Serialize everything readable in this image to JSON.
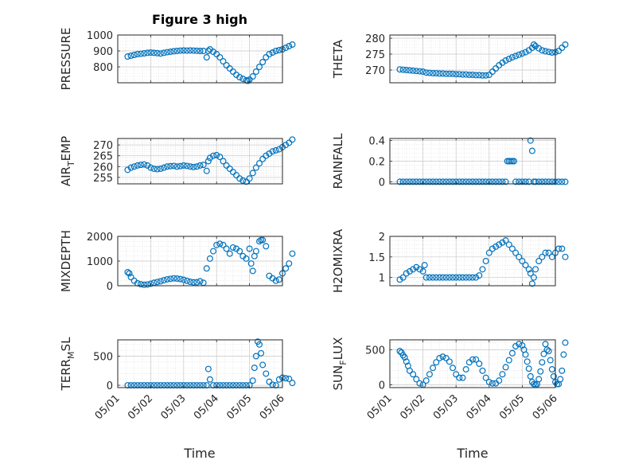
{
  "figure": {
    "title": "Figure 3 high",
    "xlabel": "Time",
    "date_ticks": [
      "05/01",
      "05/02",
      "05/03",
      "05/04",
      "05/05",
      "05/06"
    ]
  },
  "colors": {
    "marker": "#0072BD",
    "axis": "#262626",
    "grid": "#d9d9d9"
  },
  "chart_data": [
    {
      "type": "scatter",
      "ylabel": "PRESSURE",
      "xlim": [
        "05/01",
        "05/06"
      ],
      "ylim": [
        700,
        1000
      ],
      "yticks": [
        {
          "v": 800,
          "label": "800"
        },
        {
          "v": 900,
          "label": "900"
        },
        {
          "v": 1000,
          "label": "1000"
        }
      ],
      "x": [
        0.3,
        0.4,
        0.5,
        0.6,
        0.7,
        0.8,
        0.9,
        1.0,
        1.1,
        1.2,
        1.3,
        1.4,
        1.5,
        1.6,
        1.7,
        1.8,
        1.9,
        2.0,
        2.1,
        2.2,
        2.3,
        2.4,
        2.5,
        2.6,
        2.7,
        2.75,
        2.8,
        2.9,
        3.0,
        3.1,
        3.2,
        3.3,
        3.4,
        3.5,
        3.6,
        3.7,
        3.8,
        3.9,
        3.95,
        4.0,
        4.1,
        4.2,
        4.3,
        4.4,
        4.5,
        4.6,
        4.7,
        4.8,
        4.9,
        5.0,
        5.1,
        5.2,
        5.3
      ],
      "y": [
        865,
        870,
        875,
        880,
        882,
        885,
        888,
        890,
        888,
        886,
        884,
        888,
        892,
        895,
        898,
        900,
        902,
        903,
        902,
        903,
        902,
        901,
        900,
        900,
        860,
        900,
        910,
        895,
        880,
        860,
        835,
        810,
        790,
        770,
        750,
        735,
        725,
        715,
        712,
        720,
        740,
        770,
        800,
        830,
        860,
        880,
        890,
        900,
        905,
        910,
        920,
        930,
        940
      ]
    },
    {
      "type": "scatter",
      "ylabel": "THETA",
      "xlim": [
        "05/01",
        "05/06"
      ],
      "ylim": [
        266,
        281
      ],
      "yticks": [
        {
          "v": 270,
          "label": "270"
        },
        {
          "v": 275,
          "label": "275"
        },
        {
          "v": 280,
          "label": "280"
        }
      ],
      "x": [
        0.3,
        0.4,
        0.5,
        0.6,
        0.7,
        0.8,
        0.9,
        1.0,
        1.1,
        1.2,
        1.3,
        1.4,
        1.5,
        1.6,
        1.7,
        1.8,
        1.9,
        2.0,
        2.1,
        2.2,
        2.3,
        2.4,
        2.5,
        2.6,
        2.7,
        2.8,
        2.9,
        3.0,
        3.1,
        3.2,
        3.3,
        3.4,
        3.5,
        3.6,
        3.7,
        3.8,
        3.9,
        4.0,
        4.1,
        4.2,
        4.3,
        4.35,
        4.4,
        4.5,
        4.6,
        4.7,
        4.8,
        4.9,
        5.0,
        5.1,
        5.2,
        5.3
      ],
      "y": [
        270.2,
        270.1,
        270.0,
        269.9,
        269.8,
        269.7,
        269.6,
        269.5,
        269.2,
        269.1,
        269.0,
        269.0,
        268.9,
        268.9,
        268.8,
        268.8,
        268.8,
        268.7,
        268.7,
        268.6,
        268.6,
        268.5,
        268.5,
        268.4,
        268.4,
        268.3,
        268.3,
        268.5,
        269.5,
        270.5,
        271.5,
        272.3,
        273.0,
        273.5,
        274.0,
        274.4,
        274.8,
        275.2,
        275.6,
        276.2,
        277.0,
        278.0,
        277.5,
        276.8,
        276.2,
        275.9,
        275.7,
        275.5,
        275.6,
        276.0,
        277.0,
        278.0
      ]
    },
    {
      "type": "scatter",
      "ylabel": "AIR_TEMP",
      "xlim": [
        "05/01",
        "05/06"
      ],
      "ylim": [
        252,
        273
      ],
      "yticks": [
        {
          "v": 255,
          "label": "255"
        },
        {
          "v": 260,
          "label": "260"
        },
        {
          "v": 265,
          "label": "265"
        },
        {
          "v": 270,
          "label": "270"
        }
      ],
      "x": [
        0.3,
        0.4,
        0.5,
        0.6,
        0.7,
        0.8,
        0.9,
        1.0,
        1.1,
        1.2,
        1.3,
        1.4,
        1.5,
        1.6,
        1.7,
        1.8,
        1.9,
        2.0,
        2.1,
        2.2,
        2.3,
        2.4,
        2.5,
        2.6,
        2.7,
        2.75,
        2.8,
        2.9,
        3.0,
        3.1,
        3.2,
        3.3,
        3.4,
        3.5,
        3.6,
        3.7,
        3.8,
        3.9,
        4.0,
        4.1,
        4.2,
        4.3,
        4.4,
        4.5,
        4.6,
        4.7,
        4.8,
        4.9,
        5.0,
        5.1,
        5.2,
        5.3
      ],
      "y": [
        258.5,
        259.5,
        260.0,
        260.5,
        260.8,
        261.0,
        260.5,
        259.5,
        259.0,
        258.8,
        259.0,
        259.5,
        260.0,
        260.2,
        260.3,
        260.0,
        260.2,
        260.5,
        260.3,
        260.0,
        259.8,
        260.0,
        260.5,
        260.8,
        258.0,
        262.5,
        264.0,
        265.0,
        265.3,
        264.5,
        262.5,
        260.5,
        259.0,
        257.5,
        256.0,
        254.5,
        253.5,
        253.0,
        254.5,
        257.0,
        259.5,
        261.5,
        263.5,
        265.0,
        266.0,
        267.0,
        267.5,
        268.0,
        269.0,
        270.0,
        271.0,
        272.5
      ]
    },
    {
      "type": "scatter",
      "ylabel": "RAINFALL",
      "xlim": [
        "05/01",
        "05/06"
      ],
      "ylim": [
        -0.02,
        0.42
      ],
      "yticks": [
        {
          "v": 0,
          "label": "0"
        },
        {
          "v": 0.2,
          "label": "0.2"
        },
        {
          "v": 0.4,
          "label": "0.4"
        }
      ],
      "x": [
        0.3,
        0.4,
        0.5,
        0.6,
        0.7,
        0.8,
        0.9,
        1.0,
        1.1,
        1.2,
        1.3,
        1.4,
        1.5,
        1.6,
        1.7,
        1.8,
        1.9,
        2.0,
        2.1,
        2.2,
        2.3,
        2.4,
        2.5,
        2.6,
        2.7,
        2.8,
        2.9,
        3.0,
        3.1,
        3.2,
        3.3,
        3.4,
        3.5,
        3.55,
        3.6,
        3.65,
        3.7,
        3.75,
        3.8,
        3.9,
        4.0,
        4.1,
        4.2,
        4.25,
        4.3,
        4.35,
        4.4,
        4.5,
        4.6,
        4.7,
        4.8,
        4.9,
        5.0,
        5.1,
        5.2,
        5.3
      ],
      "y": [
        0,
        0,
        0,
        0,
        0,
        0,
        0,
        0,
        0,
        0,
        0,
        0,
        0,
        0,
        0,
        0,
        0,
        0,
        0,
        0,
        0,
        0,
        0,
        0,
        0,
        0,
        0,
        0,
        0,
        0,
        0,
        0,
        0,
        0.2,
        0.2,
        0.2,
        0.2,
        0.2,
        0,
        0,
        0,
        0,
        0,
        0.4,
        0.3,
        0,
        0,
        0,
        0,
        0,
        0,
        0,
        0,
        0,
        0,
        0
      ]
    },
    {
      "type": "scatter",
      "ylabel": "MIXDEPTH",
      "xlim": [
        "05/01",
        "05/06"
      ],
      "ylim": [
        0,
        2000
      ],
      "yticks": [
        {
          "v": 0,
          "label": "0"
        },
        {
          "v": 1000,
          "label": "1000"
        },
        {
          "v": 2000,
          "label": "2000"
        }
      ],
      "x": [
        0.3,
        0.35,
        0.4,
        0.5,
        0.6,
        0.7,
        0.8,
        0.9,
        1.0,
        1.1,
        1.2,
        1.3,
        1.4,
        1.5,
        1.6,
        1.7,
        1.8,
        1.9,
        2.0,
        2.1,
        2.2,
        2.3,
        2.4,
        2.5,
        2.6,
        2.7,
        2.8,
        2.9,
        3.0,
        3.1,
        3.2,
        3.3,
        3.4,
        3.5,
        3.6,
        3.7,
        3.8,
        3.9,
        4.0,
        4.05,
        4.1,
        4.15,
        4.2,
        4.3,
        4.35,
        4.4,
        4.5,
        4.6,
        4.7,
        4.8,
        4.9,
        5.0,
        5.1,
        5.2,
        5.3
      ],
      "y": [
        550,
        500,
        350,
        200,
        100,
        60,
        40,
        50,
        80,
        120,
        150,
        180,
        220,
        260,
        280,
        300,
        290,
        270,
        240,
        200,
        160,
        140,
        140,
        180,
        120,
        700,
        1100,
        1400,
        1650,
        1700,
        1650,
        1500,
        1300,
        1550,
        1500,
        1400,
        1200,
        1100,
        1500,
        900,
        600,
        1200,
        1400,
        1800,
        1850,
        1850,
        1600,
        400,
        300,
        200,
        250,
        500,
        700,
        900,
        1300
      ]
    },
    {
      "type": "scatter",
      "ylabel": "H2OMIXRA",
      "xlim": [
        "05/01",
        "05/06"
      ],
      "ylim": [
        0.8,
        2.0
      ],
      "yticks": [
        {
          "v": 1,
          "label": "1"
        },
        {
          "v": 1.5,
          "label": "1.5"
        },
        {
          "v": 2,
          "label": "2"
        }
      ],
      "x": [
        0.3,
        0.4,
        0.5,
        0.6,
        0.7,
        0.8,
        0.9,
        1.0,
        1.05,
        1.1,
        1.2,
        1.3,
        1.4,
        1.5,
        1.6,
        1.7,
        1.8,
        1.9,
        2.0,
        2.1,
        2.2,
        2.3,
        2.4,
        2.5,
        2.6,
        2.7,
        2.8,
        2.9,
        3.0,
        3.1,
        3.2,
        3.3,
        3.4,
        3.5,
        3.6,
        3.7,
        3.8,
        3.9,
        4.0,
        4.1,
        4.2,
        4.25,
        4.3,
        4.35,
        4.4,
        4.5,
        4.6,
        4.7,
        4.8,
        4.9,
        5.0,
        5.1,
        5.2,
        5.3
      ],
      "y": [
        0.95,
        1.0,
        1.1,
        1.15,
        1.2,
        1.25,
        1.2,
        1.15,
        1.3,
        1.0,
        1.0,
        1.0,
        1.0,
        1.0,
        1.0,
        1.0,
        1.0,
        1.0,
        1.0,
        1.0,
        1.0,
        1.0,
        1.0,
        1.0,
        1.0,
        1.05,
        1.2,
        1.4,
        1.6,
        1.7,
        1.75,
        1.8,
        1.85,
        1.9,
        1.8,
        1.7,
        1.6,
        1.5,
        1.4,
        1.3,
        1.2,
        1.1,
        0.85,
        1.0,
        1.2,
        1.4,
        1.5,
        1.6,
        1.6,
        1.5,
        1.6,
        1.7,
        1.7,
        1.5
      ]
    },
    {
      "type": "scatter",
      "ylabel": "TERR_MSL",
      "xlim": [
        "05/01",
        "05/06"
      ],
      "ylim": [
        -40,
        780
      ],
      "yticks": [
        {
          "v": 0,
          "label": "0"
        },
        {
          "v": 500,
          "label": "500"
        }
      ],
      "x": [
        0.3,
        0.4,
        0.5,
        0.6,
        0.7,
        0.8,
        0.9,
        1.0,
        1.1,
        1.2,
        1.3,
        1.4,
        1.5,
        1.6,
        1.7,
        1.8,
        1.9,
        2.0,
        2.1,
        2.2,
        2.3,
        2.4,
        2.5,
        2.6,
        2.7,
        2.75,
        2.8,
        2.9,
        3.0,
        3.1,
        3.2,
        3.3,
        3.4,
        3.5,
        3.6,
        3.7,
        3.8,
        3.9,
        4.0,
        4.1,
        4.15,
        4.2,
        4.25,
        4.3,
        4.35,
        4.4,
        4.5,
        4.6,
        4.7,
        4.8,
        4.9,
        5.0,
        5.1,
        5.2,
        5.3
      ],
      "y": [
        0,
        0,
        0,
        0,
        0,
        0,
        0,
        0,
        0,
        0,
        0,
        0,
        0,
        0,
        0,
        0,
        0,
        0,
        0,
        0,
        0,
        0,
        0,
        0,
        0,
        280,
        100,
        0,
        0,
        0,
        0,
        0,
        0,
        0,
        0,
        0,
        0,
        0,
        0,
        80,
        300,
        500,
        750,
        700,
        550,
        350,
        200,
        60,
        10,
        0,
        100,
        130,
        120,
        110,
        40
      ]
    },
    {
      "type": "scatter",
      "ylabel": "SUN_FLUX",
      "xlim": [
        "05/01",
        "05/06"
      ],
      "ylim": [
        -40,
        640
      ],
      "yticks": [
        {
          "v": 0,
          "label": "0"
        },
        {
          "v": 500,
          "label": "500"
        }
      ],
      "x": [
        0.3,
        0.35,
        0.4,
        0.45,
        0.5,
        0.55,
        0.6,
        0.7,
        0.8,
        0.9,
        1.0,
        1.1,
        1.2,
        1.3,
        1.4,
        1.5,
        1.6,
        1.7,
        1.8,
        1.9,
        2.0,
        2.1,
        2.2,
        2.3,
        2.4,
        2.5,
        2.6,
        2.7,
        2.8,
        2.9,
        3.0,
        3.1,
        3.2,
        3.3,
        3.4,
        3.5,
        3.6,
        3.7,
        3.8,
        3.9,
        4.0,
        4.05,
        4.1,
        4.15,
        4.2,
        4.25,
        4.3,
        4.35,
        4.4,
        4.45,
        4.5,
        4.55,
        4.6,
        4.65,
        4.7,
        4.75,
        4.8,
        4.85,
        4.9,
        4.95,
        5.0,
        5.05,
        5.1,
        5.15,
        5.2,
        5.25,
        5.3
      ],
      "y": [
        480,
        460,
        420,
        390,
        330,
        270,
        200,
        150,
        80,
        20,
        0,
        60,
        150,
        240,
        320,
        380,
        400,
        380,
        330,
        240,
        150,
        100,
        100,
        220,
        320,
        360,
        360,
        300,
        200,
        100,
        40,
        20,
        20,
        60,
        150,
        250,
        350,
        450,
        550,
        580,
        560,
        500,
        430,
        330,
        230,
        120,
        40,
        10,
        0,
        10,
        80,
        190,
        320,
        440,
        580,
        500,
        480,
        350,
        220,
        120,
        40,
        10,
        10,
        80,
        200,
        430,
        600
      ]
    }
  ]
}
